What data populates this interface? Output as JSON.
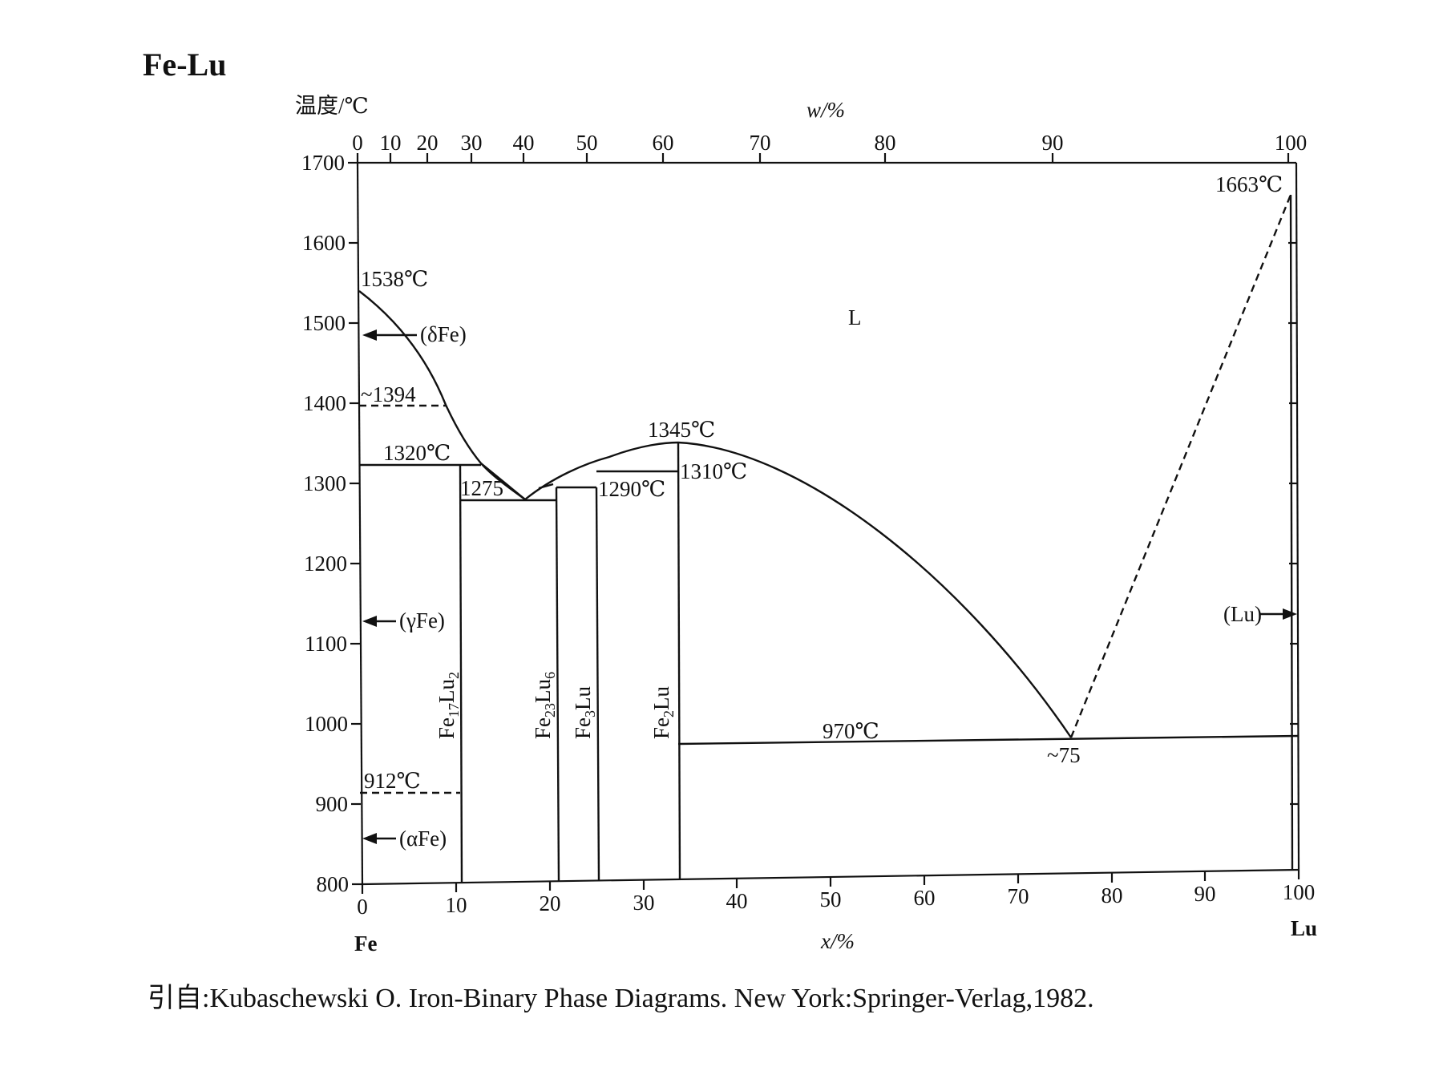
{
  "title": "Fe-Lu",
  "source": "引自:Kubaschewski O. Iron-Binary Phase Diagrams. New York:Springer-Verlag,1982.",
  "axes": {
    "ylabel": "温度/℃",
    "xlabel_bottom": "x/%",
    "xlabel_top": "w/%",
    "y_ticks": [
      "1700",
      "1600",
      "1500",
      "1400",
      "1300",
      "1200",
      "1100",
      "1000",
      "900",
      "800"
    ],
    "x_ticks_bottom": [
      "0",
      "10",
      "20",
      "30",
      "40",
      "50",
      "60",
      "70",
      "80",
      "90",
      "100"
    ],
    "x_ticks_top": [
      "0",
      "10",
      "20",
      "30",
      "40",
      "50",
      "60",
      "70",
      "80",
      "90",
      "100"
    ],
    "left_element": "Fe",
    "right_element": "Lu"
  },
  "labels": {
    "liquid": "L",
    "delta_fe": "(δFe)",
    "gamma_fe": "(γFe)",
    "alpha_fe": "(αFe)",
    "lu_phase": "(Lu)",
    "t1538": "1538℃",
    "t1394": "~1394",
    "t1320": "1320℃",
    "t1275": "1275",
    "t1345": "1345℃",
    "t1310": "1310℃",
    "t1290": "1290℃",
    "t970": "970℃",
    "t912": "912℃",
    "t1663": "1663℃",
    "eut75": "~75"
  },
  "compounds": {
    "fe17lu2": {
      "base": "Fe",
      "sub1": "17",
      "mid": "Lu",
      "sub2": "2"
    },
    "fe23lu6": {
      "base": "Fe",
      "sub1": "23",
      "mid": "Lu",
      "sub2": "6"
    },
    "fe3lu": {
      "base": "Fe",
      "sub1": "3",
      "mid": "Lu",
      "sub2": ""
    },
    "fe2lu": {
      "base": "Fe",
      "sub1": "2",
      "mid": "Lu",
      "sub2": ""
    }
  }
}
